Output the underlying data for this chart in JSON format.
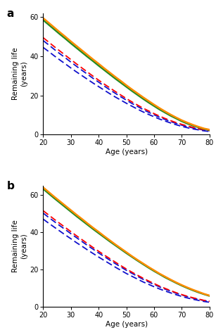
{
  "age_fine": [
    20,
    22,
    24,
    26,
    28,
    30,
    32,
    34,
    36,
    38,
    40,
    42,
    44,
    46,
    48,
    50,
    52,
    54,
    56,
    58,
    60,
    62,
    64,
    66,
    68,
    70,
    72,
    74,
    76,
    78,
    80
  ],
  "panel_a": {
    "orange": [
      59.5,
      57.1,
      54.7,
      52.3,
      50.0,
      47.6,
      45.3,
      43.0,
      40.7,
      38.4,
      36.2,
      33.9,
      31.7,
      29.5,
      27.4,
      25.2,
      23.1,
      21.1,
      19.1,
      17.2,
      15.3,
      13.5,
      11.8,
      10.2,
      8.7,
      7.3,
      6.1,
      5.0,
      4.0,
      3.1,
      2.5
    ],
    "green": [
      58.5,
      56.1,
      53.7,
      51.3,
      49.0,
      46.6,
      44.3,
      42.0,
      39.7,
      37.5,
      35.2,
      33.0,
      30.8,
      28.6,
      26.5,
      24.4,
      22.3,
      20.3,
      18.3,
      16.4,
      14.6,
      12.8,
      11.2,
      9.6,
      8.2,
      6.8,
      5.6,
      4.6,
      3.7,
      2.9,
      2.3
    ],
    "red": [
      49.5,
      47.2,
      44.9,
      42.7,
      40.5,
      38.3,
      36.1,
      34.0,
      31.9,
      29.8,
      27.8,
      25.8,
      23.9,
      22.0,
      20.2,
      18.4,
      16.7,
      15.1,
      13.5,
      12.1,
      10.7,
      9.4,
      8.2,
      7.1,
      6.1,
      5.2,
      4.4,
      3.7,
      3.0,
      2.5,
      2.1
    ],
    "blue_hi": [
      48.0,
      45.8,
      43.5,
      41.3,
      39.2,
      37.0,
      34.9,
      32.8,
      30.8,
      28.7,
      26.8,
      24.8,
      22.9,
      21.1,
      19.3,
      17.6,
      15.9,
      14.4,
      12.8,
      11.4,
      10.1,
      8.8,
      7.7,
      6.6,
      5.7,
      4.8,
      4.0,
      3.4,
      2.8,
      2.3,
      1.9
    ],
    "blue_lo": [
      44.5,
      42.4,
      40.2,
      38.1,
      36.1,
      34.0,
      32.0,
      30.1,
      28.2,
      26.3,
      24.5,
      22.7,
      20.9,
      19.2,
      17.6,
      16.0,
      14.5,
      13.0,
      11.6,
      10.3,
      9.1,
      7.9,
      6.9,
      5.9,
      5.0,
      4.2,
      3.5,
      2.9,
      2.4,
      1.9,
      1.6
    ]
  },
  "panel_b": {
    "orange": [
      64.0,
      61.5,
      59.0,
      56.6,
      54.2,
      51.8,
      49.4,
      47.1,
      44.7,
      42.4,
      40.2,
      37.9,
      35.7,
      33.5,
      31.4,
      29.3,
      27.2,
      25.2,
      23.3,
      21.4,
      19.6,
      17.8,
      16.2,
      14.6,
      13.1,
      11.7,
      10.4,
      9.2,
      8.1,
      7.0,
      6.1
    ],
    "green": [
      63.2,
      60.7,
      58.2,
      55.8,
      53.4,
      51.0,
      48.6,
      46.3,
      44.0,
      41.7,
      39.5,
      37.3,
      35.1,
      33.0,
      30.9,
      28.8,
      26.8,
      24.8,
      22.9,
      21.0,
      19.2,
      17.5,
      15.8,
      14.3,
      12.8,
      11.4,
      10.1,
      8.9,
      7.8,
      6.8,
      5.9
    ],
    "red": [
      51.5,
      49.2,
      46.9,
      44.7,
      42.5,
      40.3,
      38.1,
      36.0,
      33.9,
      31.8,
      29.8,
      27.8,
      25.9,
      24.0,
      22.1,
      20.3,
      18.6,
      17.0,
      15.4,
      13.9,
      12.5,
      11.1,
      9.9,
      8.7,
      7.6,
      6.6,
      5.7,
      4.9,
      4.2,
      3.5,
      3.0
    ],
    "blue_hi": [
      50.2,
      47.9,
      45.7,
      43.5,
      41.4,
      39.2,
      37.1,
      35.0,
      32.9,
      30.9,
      28.9,
      27.0,
      25.1,
      23.2,
      21.4,
      19.6,
      18.0,
      16.4,
      14.8,
      13.4,
      12.0,
      10.7,
      9.5,
      8.4,
      7.3,
      6.4,
      5.5,
      4.7,
      4.0,
      3.4,
      2.9
    ],
    "blue_lo": [
      47.0,
      44.8,
      42.7,
      40.6,
      38.5,
      36.5,
      34.4,
      32.5,
      30.5,
      28.6,
      26.7,
      24.9,
      23.1,
      21.3,
      19.6,
      17.9,
      16.4,
      14.9,
      13.4,
      12.1,
      10.8,
      9.6,
      8.5,
      7.5,
      6.5,
      5.6,
      4.8,
      4.1,
      3.5,
      2.9,
      2.5
    ]
  },
  "xlim": [
    20,
    80
  ],
  "ylim_a": [
    0,
    62
  ],
  "ylim_b": [
    0,
    65
  ],
  "xticks": [
    20,
    30,
    40,
    50,
    60,
    70,
    80
  ],
  "yticks_a": [
    0,
    20,
    40,
    60
  ],
  "yticks_b": [
    0,
    20,
    40,
    60
  ],
  "xlabel": "Age (years)",
  "ylabel": "Remaining life\n(years)",
  "orange_color": "#FF8C00",
  "green_color": "#228B22",
  "red_color": "#FF0000",
  "blue_color": "#1010CC",
  "bg_color": "#FFFFFF",
  "label_a": "a",
  "label_b": "b"
}
